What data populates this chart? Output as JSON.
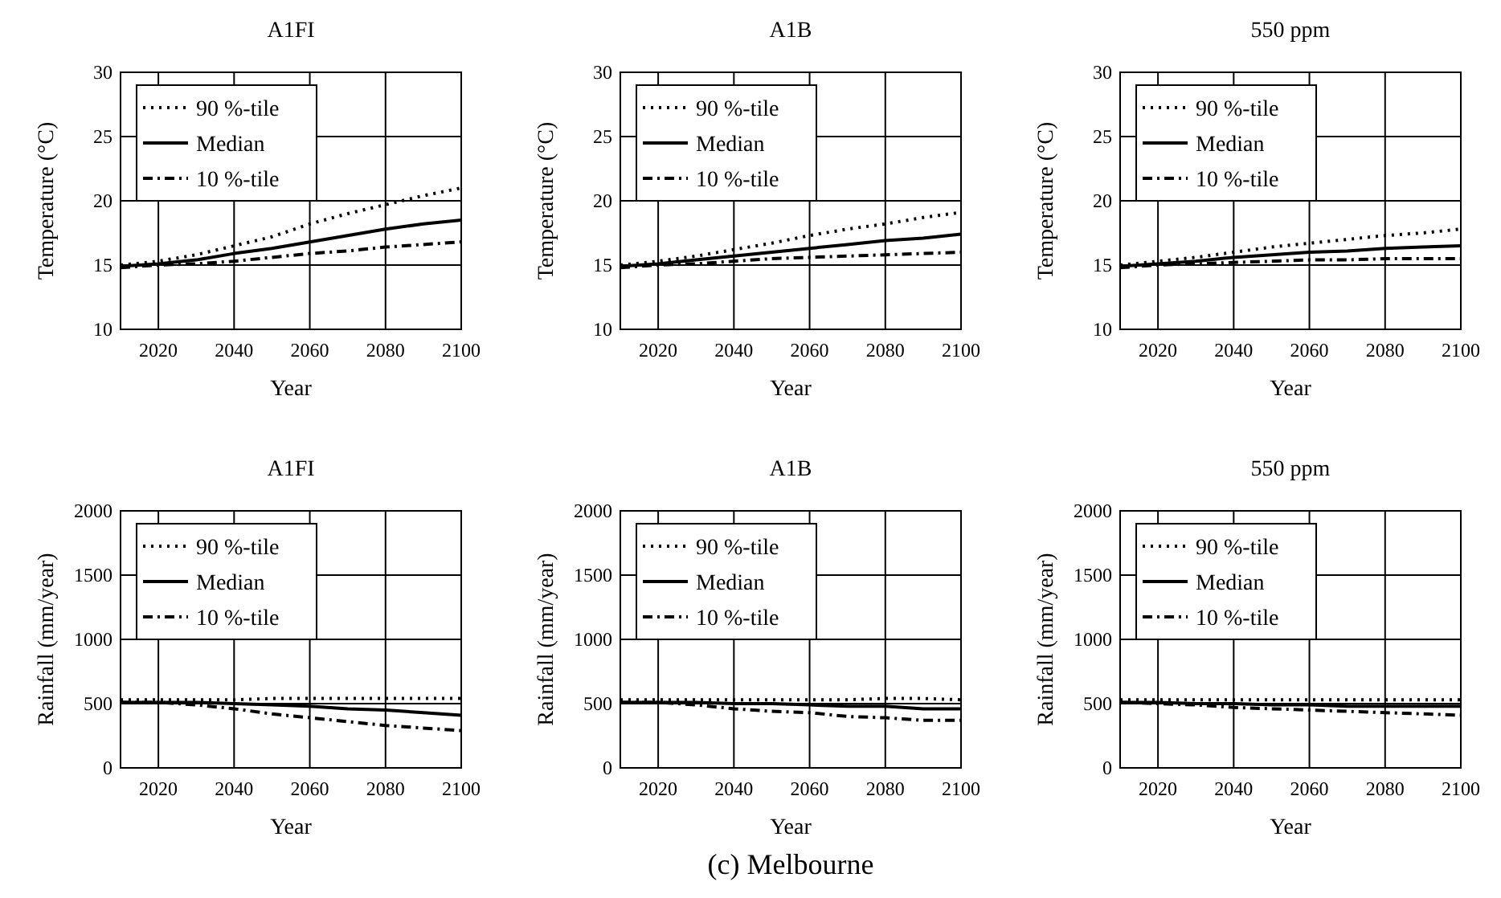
{
  "chart_data": [
    {
      "type": "line",
      "title": "A1FI",
      "xlabel": "Year",
      "ylabel": "Temperature (°C)",
      "x": [
        2010,
        2020,
        2030,
        2040,
        2050,
        2060,
        2070,
        2080,
        2090,
        2100
      ],
      "xlim": [
        2010,
        2100
      ],
      "xticks": [
        2020,
        2040,
        2060,
        2080,
        2100
      ],
      "ylim": [
        10,
        30
      ],
      "yticks": [
        10,
        15,
        20,
        25,
        30
      ],
      "grid": true,
      "legend": "top left",
      "series": [
        {
          "name": "90 %-tile",
          "color": "#000000",
          "line_style": "dotted",
          "values": [
            15,
            15.3,
            15.8,
            16.5,
            17.2,
            18.2,
            19,
            19.7,
            20.4,
            21
          ]
        },
        {
          "name": "Median",
          "color": "#000000",
          "line_style": "solid",
          "values": [
            14.9,
            15.1,
            15.4,
            15.9,
            16.3,
            16.8,
            17.3,
            17.8,
            18.2,
            18.5
          ]
        },
        {
          "name": "10 %-tile",
          "color": "#000000",
          "line_style": "dashed",
          "values": [
            14.8,
            15,
            15.1,
            15.3,
            15.6,
            15.9,
            16.1,
            16.4,
            16.6,
            16.8
          ]
        }
      ]
    },
    {
      "type": "line",
      "title": "A1B",
      "xlabel": "Year",
      "ylabel": "Temperature (°C)",
      "x": [
        2010,
        2020,
        2030,
        2040,
        2050,
        2060,
        2070,
        2080,
        2090,
        2100
      ],
      "xlim": [
        2010,
        2100
      ],
      "xticks": [
        2020,
        2040,
        2060,
        2080,
        2100
      ],
      "ylim": [
        10,
        30
      ],
      "yticks": [
        10,
        15,
        20,
        25,
        30
      ],
      "grid": true,
      "legend": "top left",
      "series": [
        {
          "name": "90 %-tile",
          "color": "#000000",
          "line_style": "dotted",
          "values": [
            15,
            15.3,
            15.7,
            16.2,
            16.7,
            17.3,
            17.8,
            18.2,
            18.7,
            19.1
          ]
        },
        {
          "name": "Median",
          "color": "#000000",
          "line_style": "solid",
          "values": [
            14.9,
            15.1,
            15.4,
            15.7,
            16,
            16.3,
            16.6,
            16.9,
            17.1,
            17.4
          ]
        },
        {
          "name": "10 %-tile",
          "color": "#000000",
          "line_style": "dashed",
          "values": [
            14.8,
            15,
            15.1,
            15.3,
            15.5,
            15.6,
            15.7,
            15.8,
            15.9,
            16
          ]
        }
      ]
    },
    {
      "type": "line",
      "title": "550 ppm",
      "xlabel": "Year",
      "ylabel": "Temperature (°C)",
      "x": [
        2010,
        2020,
        2030,
        2040,
        2050,
        2060,
        2070,
        2080,
        2090,
        2100
      ],
      "xlim": [
        2010,
        2100
      ],
      "xticks": [
        2020,
        2040,
        2060,
        2080,
        2100
      ],
      "ylim": [
        10,
        30
      ],
      "yticks": [
        10,
        15,
        20,
        25,
        30
      ],
      "grid": true,
      "legend": "top left",
      "series": [
        {
          "name": "90 %-tile",
          "color": "#000000",
          "line_style": "dotted",
          "values": [
            15,
            15.3,
            15.6,
            16,
            16.4,
            16.7,
            17,
            17.3,
            17.5,
            17.8
          ]
        },
        {
          "name": "Median",
          "color": "#000000",
          "line_style": "solid",
          "values": [
            14.9,
            15.1,
            15.3,
            15.6,
            15.8,
            16,
            16.1,
            16.3,
            16.4,
            16.5
          ]
        },
        {
          "name": "10 %-tile",
          "color": "#000000",
          "line_style": "dashed",
          "values": [
            14.8,
            15,
            15.1,
            15.2,
            15.3,
            15.4,
            15.4,
            15.5,
            15.5,
            15.5
          ]
        }
      ]
    },
    {
      "type": "line",
      "title": "A1FI",
      "xlabel": "Year",
      "ylabel": "Rainfall (mm/year)",
      "x": [
        2010,
        2020,
        2030,
        2040,
        2050,
        2060,
        2070,
        2080,
        2090,
        2100
      ],
      "xlim": [
        2010,
        2100
      ],
      "xticks": [
        2020,
        2040,
        2060,
        2080,
        2100
      ],
      "ylim": [
        0,
        2000
      ],
      "yticks": [
        0,
        500,
        1000,
        1500,
        2000
      ],
      "grid": true,
      "legend": "top left",
      "series": [
        {
          "name": "90 %-tile",
          "color": "#000000",
          "line_style": "dotted",
          "values": [
            530,
            530,
            530,
            530,
            540,
            540,
            540,
            540,
            540,
            540
          ]
        },
        {
          "name": "Median",
          "color": "#000000",
          "line_style": "solid",
          "values": [
            510,
            510,
            510,
            500,
            490,
            480,
            460,
            450,
            430,
            410
          ]
        },
        {
          "name": "10 %-tile",
          "color": "#000000",
          "line_style": "dashed",
          "values": [
            510,
            510,
            490,
            460,
            420,
            390,
            360,
            330,
            310,
            290
          ]
        }
      ]
    },
    {
      "type": "line",
      "title": "A1B",
      "xlabel": "Year",
      "ylabel": "Rainfall (mm/year)",
      "x": [
        2010,
        2020,
        2030,
        2040,
        2050,
        2060,
        2070,
        2080,
        2090,
        2100
      ],
      "xlim": [
        2010,
        2100
      ],
      "xticks": [
        2020,
        2040,
        2060,
        2080,
        2100
      ],
      "ylim": [
        0,
        2000
      ],
      "yticks": [
        0,
        500,
        1000,
        1500,
        2000
      ],
      "grid": true,
      "legend": "top left",
      "annotations": [
        "(c) Melbourne"
      ],
      "series": [
        {
          "name": "90 %-tile",
          "color": "#000000",
          "line_style": "dotted",
          "values": [
            530,
            530,
            530,
            530,
            530,
            530,
            530,
            540,
            540,
            530
          ]
        },
        {
          "name": "Median",
          "color": "#000000",
          "line_style": "solid",
          "values": [
            510,
            510,
            510,
            500,
            500,
            490,
            480,
            480,
            460,
            460
          ]
        },
        {
          "name": "10 %-tile",
          "color": "#000000",
          "line_style": "dashed",
          "values": [
            510,
            510,
            490,
            460,
            440,
            430,
            400,
            390,
            370,
            370
          ]
        }
      ]
    },
    {
      "type": "line",
      "title": "550 ppm",
      "xlabel": "Year",
      "ylabel": "Rainfall (mm/year)",
      "x": [
        2010,
        2020,
        2030,
        2040,
        2050,
        2060,
        2070,
        2080,
        2090,
        2100
      ],
      "xlim": [
        2010,
        2100
      ],
      "xticks": [
        2020,
        2040,
        2060,
        2080,
        2100
      ],
      "ylim": [
        0,
        2000
      ],
      "yticks": [
        0,
        500,
        1000,
        1500,
        2000
      ],
      "grid": true,
      "legend": "top left",
      "series": [
        {
          "name": "90 %-tile",
          "color": "#000000",
          "line_style": "dotted",
          "values": [
            530,
            530,
            530,
            530,
            530,
            530,
            530,
            530,
            530,
            530
          ]
        },
        {
          "name": "Median",
          "color": "#000000",
          "line_style": "solid",
          "values": [
            510,
            510,
            500,
            500,
            490,
            490,
            480,
            480,
            480,
            480
          ]
        },
        {
          "name": "10 %-tile",
          "color": "#000000",
          "line_style": "dashed",
          "values": [
            510,
            500,
            490,
            470,
            460,
            450,
            440,
            430,
            420,
            410
          ]
        }
      ]
    }
  ]
}
